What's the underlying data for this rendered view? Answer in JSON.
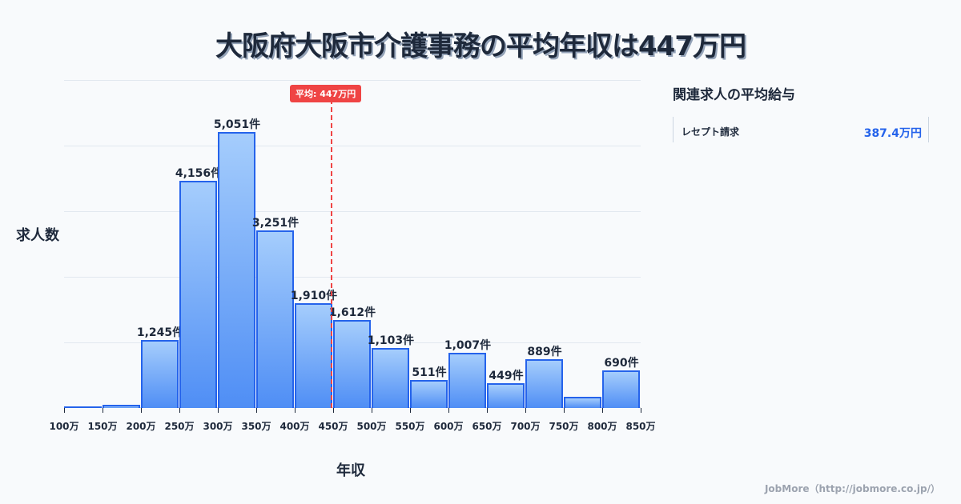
{
  "title": "大阪府大阪市介護事務の平均年収は447万円",
  "axes": {
    "ylabel": "求人数",
    "xlabel": "年収"
  },
  "average": {
    "label": "平均: 447万円",
    "value": 447
  },
  "sidebar": {
    "title": "関連求人の平均給与",
    "items": [
      {
        "label": "レセプト請求",
        "value": "387.4万円"
      }
    ]
  },
  "footer": "JobMore（http://jobmore.co.jp/）",
  "colors": {
    "bar_top": "#a5cdfc",
    "bar_bottom": "#4f8ef5",
    "bar_border": "#2563eb",
    "average_line": "#ef4444",
    "accent_value": "#2563eb"
  },
  "chart_data": {
    "type": "bar",
    "title": "大阪府大阪市介護事務の平均年収は447万円",
    "xlabel": "年収",
    "ylabel": "求人数",
    "categories": [
      "100-150万",
      "150-200万",
      "200-250万",
      "250-300万",
      "300-350万",
      "350-400万",
      "400-450万",
      "450-500万",
      "500-550万",
      "550-600万",
      "600-650万",
      "650-700万",
      "700-750万",
      "750-800万",
      "800-850万"
    ],
    "values": [
      30,
      60,
      1245,
      4156,
      5051,
      3251,
      1910,
      1612,
      1103,
      511,
      1007,
      449,
      889,
      200,
      690
    ],
    "labels": [
      "",
      "",
      "1,245件",
      "4,156件",
      "5,051件",
      "3,251件",
      "1,910件",
      "1,612件",
      "1,103件",
      "511件",
      "1,007件",
      "449件",
      "889件",
      "",
      "690件"
    ],
    "x_ticks": [
      "100万",
      "150万",
      "200万",
      "250万",
      "300万",
      "350万",
      "400万",
      "450万",
      "500万",
      "550万",
      "600万",
      "650万",
      "700万",
      "750万",
      "800万",
      "850万"
    ],
    "ylim": [
      0,
      6000
    ],
    "grid": true,
    "annotations": [
      {
        "type": "vline",
        "x": 447,
        "label": "平均: 447万円"
      }
    ]
  }
}
